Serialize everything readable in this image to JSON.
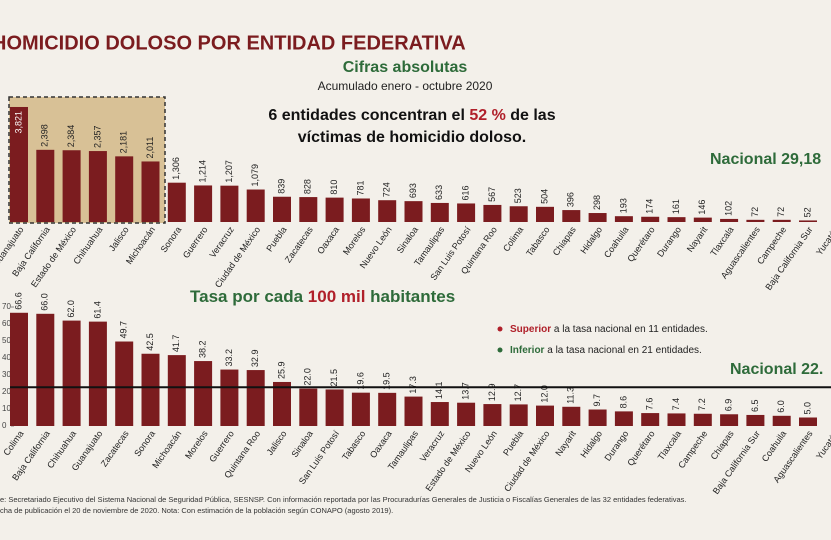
{
  "chart_data": [
    {
      "type": "bar",
      "title": "HOMICIDIO DOLOSO POR ENTIDAD FEDERATIVA",
      "subtitle": "Cifras absolutas",
      "period": "Acumulado enero - octubre 2020",
      "annotation": [
        "6 entidades concentran el ",
        "52 %",
        " de las",
        "víctimas de homicidio doloso."
      ],
      "national": "Nacional 29,18",
      "color": "#7b1c1f",
      "categories": [
        "Guanajuato",
        "Baja California",
        "Estado de México",
        "Chihuahua",
        "Jalisco",
        "Michoacán",
        "Sonora",
        "Guerrero",
        "Veracruz",
        "Ciudad de México",
        "Puebla",
        "Zacatecas",
        "Oaxaca",
        "Morelos",
        "Nuevo León",
        "Sinaloa",
        "Tamaulipas",
        "San Luis Potosí",
        "Quintana Roo",
        "Colima",
        "Tabasco",
        "Chiapas",
        "Hidalgo",
        "Coahuila",
        "Querétaro",
        "Durango",
        "Nayarit",
        "Tlaxcala",
        "Aguascalientes",
        "Campeche",
        "Baja California Sur",
        "Yucatán"
      ],
      "values": [
        3821,
        2398,
        2384,
        2357,
        2181,
        2011,
        1306,
        1214,
        1207,
        1079,
        839,
        828,
        810,
        781,
        724,
        693,
        633,
        616,
        567,
        523,
        504,
        396,
        298,
        193,
        174,
        161,
        146,
        102,
        72,
        72,
        52,
        null
      ],
      "value_labels": [
        "3,821",
        "2,398",
        "2,384",
        "2,357",
        "2,181",
        "2,011",
        "1,306",
        "1,214",
        "1,207",
        "1,079",
        "839",
        "828",
        "810",
        "781",
        "724",
        "693",
        "633",
        "616",
        "567",
        "523",
        "504",
        "396",
        "298",
        "193",
        "174",
        "161",
        "146",
        "102",
        "72",
        "72",
        "52",
        null
      ]
    },
    {
      "type": "bar",
      "title": [
        "Tasa por cada ",
        "100 mil",
        " habitantes"
      ],
      "legend": [
        [
          "Superior",
          " a la tasa nacional en 11 entidades."
        ],
        [
          "Inferior",
          " a la tasa nacional en 21 entidades."
        ]
      ],
      "national": "Nacional 22.",
      "reference_line": 22.8,
      "color": "#7b1c1f",
      "ylim": [
        0,
        70
      ],
      "yticks": [
        0,
        10,
        20,
        30,
        40,
        50,
        60,
        70
      ],
      "categories": [
        "Colima",
        "Baja California",
        "Chihuahua",
        "Guanajuato",
        "Zacatecas",
        "Sonora",
        "Michoacán",
        "Morelos",
        "Guerrero",
        "Quintana Roo",
        "Jalisco",
        "Sinaloa",
        "San Luis Potosí",
        "Tabasco",
        "Oaxaca",
        "Tamaulipas",
        "Veracruz",
        "Estado de México",
        "Nuevo León",
        "Puebla",
        "Ciudad de México",
        "Nayarit",
        "Hidalgo",
        "Durango",
        "Querétaro",
        "Tlaxcala",
        "Campeche",
        "Chiapas",
        "Baja California Sur",
        "Coahuila",
        "Aguascalientes",
        "Yucatán"
      ],
      "values": [
        66.6,
        66.0,
        62.0,
        61.4,
        49.7,
        42.5,
        41.7,
        38.2,
        33.2,
        32.9,
        25.9,
        22.0,
        21.5,
        19.6,
        19.5,
        17.3,
        14.1,
        13.7,
        12.9,
        12.7,
        12.0,
        11.3,
        9.7,
        8.6,
        7.6,
        7.4,
        7.2,
        6.9,
        6.5,
        6.0,
        5.0,
        null
      ],
      "value_labels": [
        "66.6",
        "66.0",
        "62.0",
        "61.4",
        "49.7",
        "42.5",
        "41.7",
        "38.2",
        "33.2",
        "32.9",
        "25.9",
        "22.0",
        "21.5",
        "19.6",
        "19.5",
        "17.3",
        "14.1",
        "13.7",
        "12.9",
        "12.7",
        "12.0",
        "11.3",
        "9.7",
        "8.6",
        "7.6",
        "7.4",
        "7.2",
        "6.9",
        "6.5",
        "6.0",
        "5.0",
        null
      ]
    }
  ],
  "footer": [
    "e: Secretariado Ejecutivo del Sistema Nacional de Seguridad Pública, SESNSP. Con información reportada por las Procuradurías Generales de Justicia o Fiscalías Generales de las 32 entidades federativas.",
    "cha de publicación el 20 de noviembre de 2020. Nota: Con estimación de la población según CONAPO (agosto 2019)."
  ]
}
